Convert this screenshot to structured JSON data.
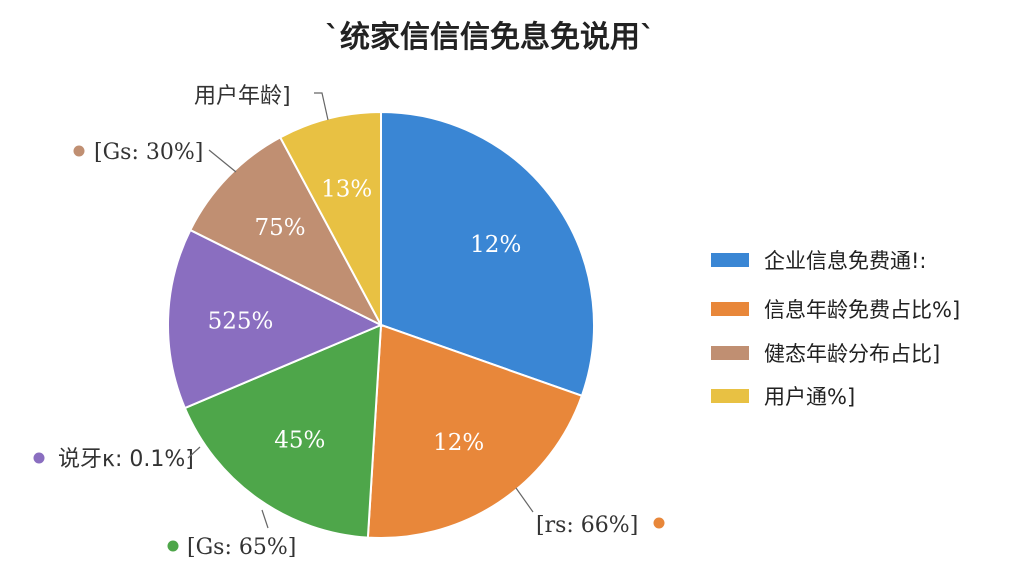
{
  "chart_data": {
    "type": "pie",
    "title": "`统家信信信免息免说用`",
    "slices": [
      {
        "label": "12%",
        "value": 31,
        "color": "#3a86d4"
      },
      {
        "label": "12%",
        "value": 21,
        "color": "#e8873a"
      },
      {
        "label": "45%",
        "value": 18,
        "color": "#4ea64a"
      },
      {
        "label": "525%",
        "value": 14,
        "color": "#8a6ec0"
      },
      {
        "label": "75%",
        "value": 10,
        "color": "#c08f72"
      },
      {
        "label": "13%",
        "value": 8,
        "color": "#e8c143"
      }
    ],
    "callouts": [
      {
        "text": "[Gs: 30%]",
        "color": "#c08f72"
      },
      {
        "text": "用户年龄]",
        "color": null
      },
      {
        "text": "说牙κ: 0.1%]",
        "color": "#8a6ec0"
      },
      {
        "text": "[Gs: 65%]",
        "color": "#4ea64a"
      },
      {
        "text": "[rs: 66%]",
        "color": "#e8873a"
      }
    ],
    "legend": {
      "position": "right",
      "items": [
        {
          "label": "企业信息免费通!:",
          "color": "#3a86d4"
        },
        {
          "label": "信息年龄免费占比%]",
          "color": "#e8873a"
        },
        {
          "label": "健态年龄分布占比]",
          "color": "#c08f72"
        },
        {
          "label": "用户通%]",
          "color": "#e8c143"
        }
      ]
    }
  }
}
